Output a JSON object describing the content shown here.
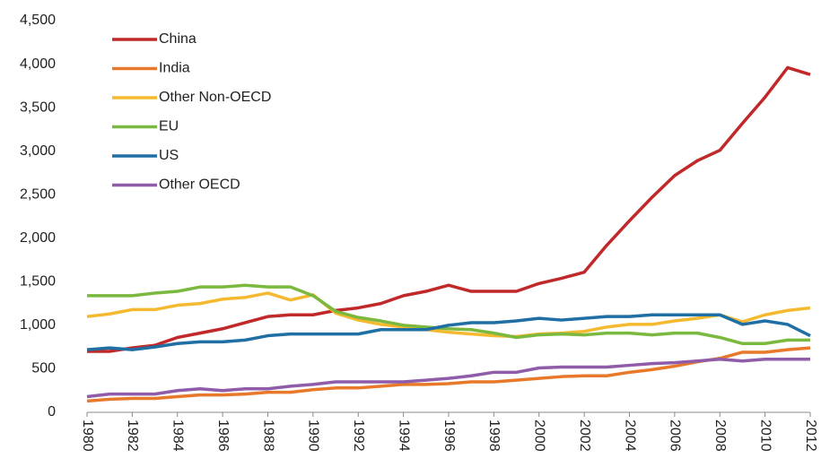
{
  "chart_data": {
    "type": "line",
    "x": [
      1980,
      1981,
      1982,
      1983,
      1984,
      1985,
      1986,
      1987,
      1988,
      1989,
      1990,
      1991,
      1992,
      1993,
      1994,
      1995,
      1996,
      1997,
      1998,
      1999,
      2000,
      2001,
      2002,
      2003,
      2004,
      2005,
      2006,
      2007,
      2008,
      2009,
      2010,
      2011,
      2012
    ],
    "xlim": [
      1980,
      2012
    ],
    "xticks": [
      1980,
      1982,
      1984,
      1986,
      1988,
      1990,
      1992,
      1994,
      1996,
      1998,
      2000,
      2002,
      2004,
      2006,
      2008,
      2010,
      2012
    ],
    "ylim": [
      0,
      4500
    ],
    "yticks": [
      0,
      500,
      {
        "value": 1000,
        "label": "1,000"
      },
      {
        "value": 1500,
        "label": "1,500"
      },
      {
        "value": 2000,
        "label": "2,000"
      },
      {
        "value": 2500,
        "label": "2,500"
      },
      {
        "value": 3000,
        "label": "3,000"
      },
      {
        "value": 3500,
        "label": "3,500"
      },
      {
        "value": 4000,
        "label": "4,000"
      },
      {
        "value": 4500,
        "label": "4,500"
      }
    ],
    "grid": false,
    "legend": "top-left",
    "series": [
      {
        "name": "China",
        "color": "#c0282a",
        "values": [
          700,
          700,
          740,
          770,
          860,
          910,
          960,
          1030,
          1100,
          1120,
          1120,
          1170,
          1200,
          1250,
          1340,
          1390,
          1460,
          1390,
          1390,
          1390,
          1480,
          1540,
          1610,
          1920,
          2200,
          2470,
          2720,
          2890,
          3010,
          3320,
          3620,
          3960,
          3880
        ]
      },
      {
        "name": "India",
        "color": "#e8782a",
        "values": [
          130,
          150,
          160,
          160,
          180,
          200,
          200,
          210,
          230,
          230,
          260,
          280,
          280,
          300,
          320,
          320,
          330,
          350,
          350,
          370,
          390,
          410,
          420,
          420,
          460,
          490,
          530,
          580,
          620,
          690,
          690,
          720,
          740
        ]
      },
      {
        "name": "Other Non-OECD",
        "color": "#f4b92e",
        "values": [
          1100,
          1130,
          1180,
          1180,
          1230,
          1250,
          1300,
          1320,
          1370,
          1290,
          1350,
          1140,
          1060,
          1010,
          980,
          950,
          920,
          900,
          880,
          870,
          900,
          910,
          930,
          980,
          1010,
          1010,
          1050,
          1080,
          1120,
          1040,
          1120,
          1170,
          1200
        ]
      },
      {
        "name": "EU",
        "color": "#7ab83e",
        "values": [
          1340,
          1340,
          1340,
          1370,
          1390,
          1440,
          1440,
          1460,
          1440,
          1440,
          1340,
          1160,
          1090,
          1050,
          1000,
          980,
          960,
          950,
          910,
          860,
          890,
          900,
          890,
          910,
          910,
          890,
          910,
          910,
          860,
          790,
          790,
          830,
          830
        ]
      },
      {
        "name": "US",
        "color": "#1f6fa5",
        "values": [
          720,
          740,
          720,
          750,
          790,
          810,
          810,
          830,
          880,
          900,
          900,
          900,
          900,
          950,
          950,
          950,
          1000,
          1030,
          1030,
          1050,
          1080,
          1060,
          1080,
          1100,
          1100,
          1120,
          1120,
          1120,
          1120,
          1010,
          1050,
          1010,
          880
        ]
      },
      {
        "name": "Other OECD",
        "color": "#8e5ca8",
        "values": [
          180,
          210,
          210,
          210,
          250,
          270,
          250,
          270,
          270,
          300,
          320,
          350,
          350,
          350,
          350,
          370,
          390,
          420,
          460,
          460,
          510,
          520,
          520,
          520,
          540,
          560,
          570,
          590,
          610,
          590,
          610,
          610,
          610
        ]
      }
    ]
  }
}
